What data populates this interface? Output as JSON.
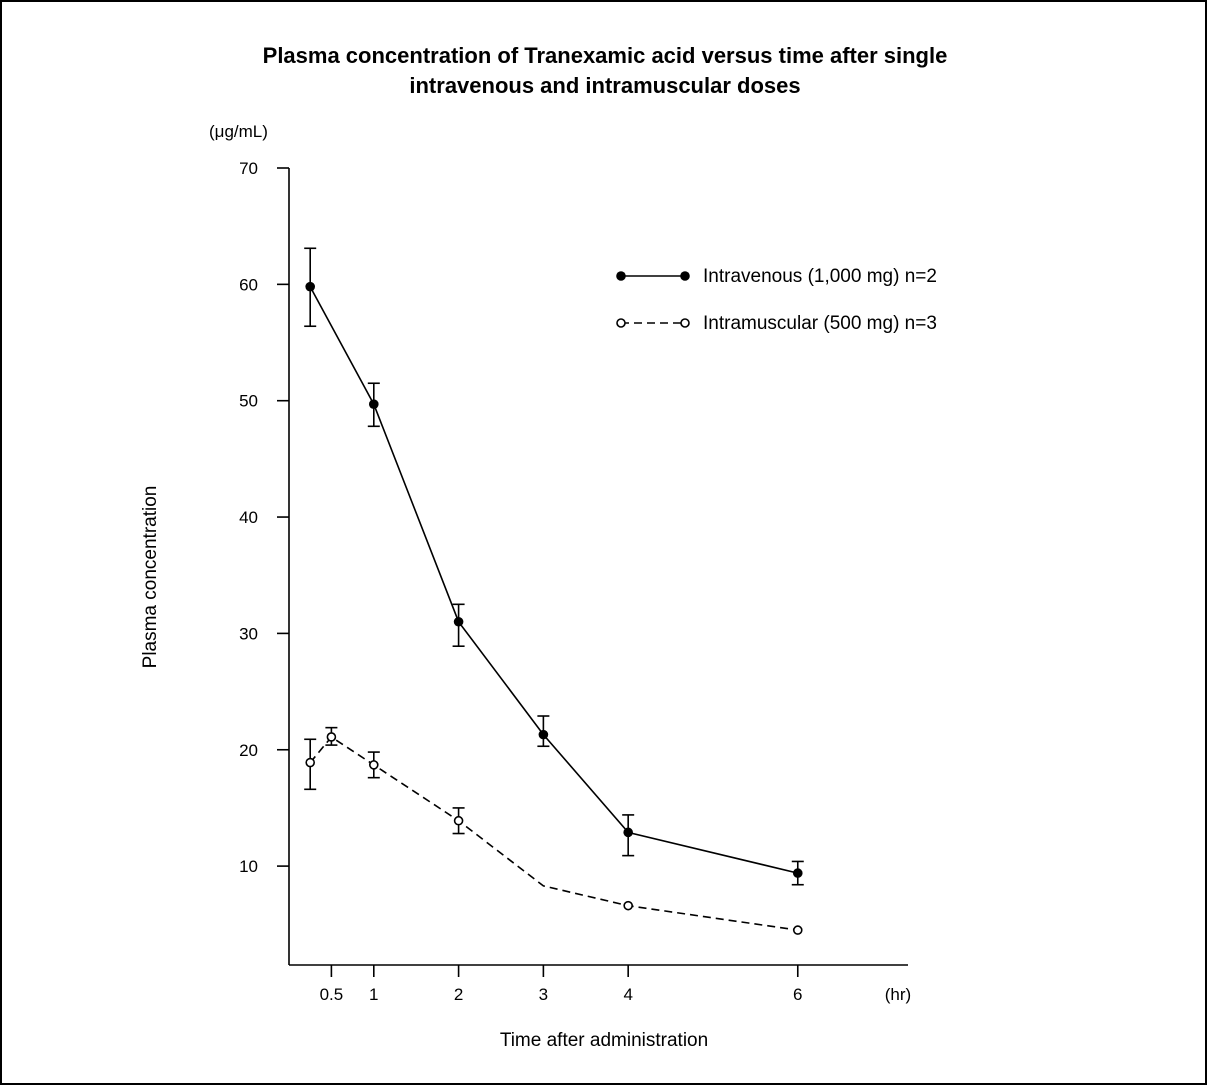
{
  "chart_data": {
    "type": "line",
    "title_lines": [
      "Plasma concentration of Tranexamic acid versus time after single",
      "intravenous and intramuscular doses"
    ],
    "ylabel": "Plasma concentration",
    "yunit": "(μg/mL)",
    "xlabel": "Time after administration",
    "xunit": "(hr)",
    "xlim": [
      0,
      7.3
    ],
    "ylim": [
      1.5,
      70
    ],
    "x_ticks": [
      {
        "value": 0.5,
        "label": "0.5"
      },
      {
        "value": 1,
        "label": "1"
      },
      {
        "value": 2,
        "label": "2"
      },
      {
        "value": 3,
        "label": "3"
      },
      {
        "value": 4,
        "label": "4"
      },
      {
        "value": 6,
        "label": "6"
      }
    ],
    "y_ticks": [
      {
        "value": 10,
        "label": "10"
      },
      {
        "value": 20,
        "label": "20"
      },
      {
        "value": 30,
        "label": "30"
      },
      {
        "value": 40,
        "label": "40"
      },
      {
        "value": 50,
        "label": "50"
      },
      {
        "value": 60,
        "label": "60"
      },
      {
        "value": 70,
        "label": "70"
      }
    ],
    "grid": false,
    "legend_position": "top-right",
    "series": [
      {
        "name": "Intravenous (1,000 mg) n=2",
        "marker": "filled-circle",
        "line": "solid",
        "x": [
          0.25,
          1,
          2,
          3,
          4,
          6
        ],
        "y": [
          59.8,
          49.7,
          31.0,
          21.3,
          12.9,
          9.4
        ],
        "err_low": [
          56.4,
          47.8,
          28.9,
          20.3,
          10.9,
          8.4
        ],
        "err_high": [
          63.1,
          51.5,
          32.5,
          22.9,
          14.4,
          10.4
        ]
      },
      {
        "name": "Intramuscular (500 mg) n=3",
        "marker": "open-circle",
        "line": "dashed",
        "x": [
          0.25,
          0.5,
          1,
          2,
          3,
          4,
          6
        ],
        "y": [
          18.9,
          21.1,
          18.7,
          13.9,
          8.3,
          6.6,
          4.5
        ],
        "show_marker": [
          true,
          true,
          true,
          true,
          false,
          true,
          true
        ],
        "err_low": [
          16.6,
          20.4,
          17.6,
          12.8,
          null,
          null,
          null
        ],
        "err_high": [
          20.9,
          21.9,
          19.8,
          15.0,
          null,
          null,
          null
        ]
      }
    ]
  }
}
